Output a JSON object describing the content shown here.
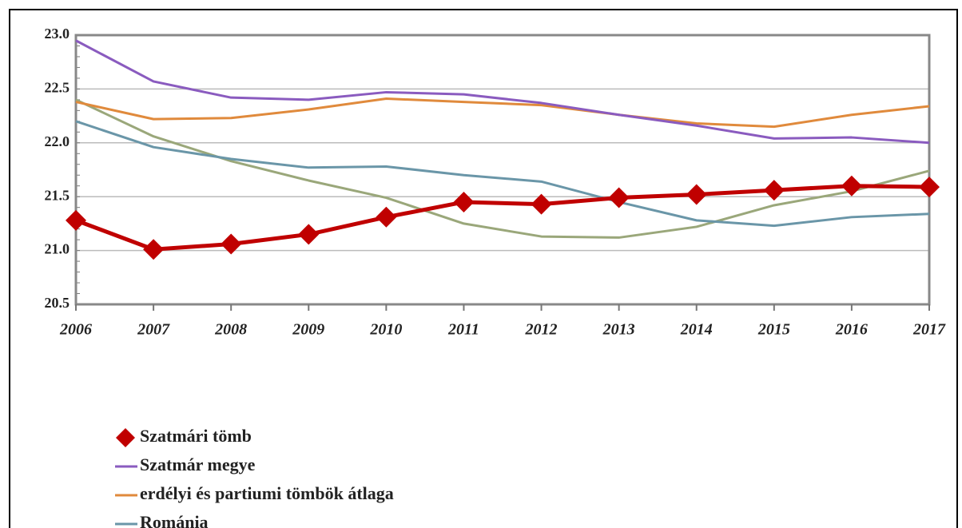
{
  "chart_data": {
    "type": "line",
    "categories": [
      "2006",
      "2007",
      "2008",
      "2009",
      "2010",
      "2011",
      "2012",
      "2013",
      "2014",
      "2015",
      "2016",
      "2017"
    ],
    "series": [
      {
        "name": "Szatmári tömb",
        "color": "#c00000",
        "marker": "diamond",
        "values": [
          21.28,
          21.01,
          21.06,
          21.15,
          21.31,
          21.45,
          21.43,
          21.49,
          21.52,
          21.56,
          21.6,
          21.59
        ]
      },
      {
        "name": "Szatmár megye",
        "color": "#8a5bbf",
        "values": [
          22.95,
          22.57,
          22.42,
          22.4,
          22.47,
          22.45,
          22.37,
          22.26,
          22.16,
          22.04,
          22.05,
          22.0
        ]
      },
      {
        "name": "erdélyi és partiumi tömbök átlaga",
        "color": "#e08a3c",
        "values": [
          22.38,
          22.22,
          22.23,
          22.31,
          22.41,
          22.38,
          22.35,
          22.26,
          22.18,
          22.15,
          22.26,
          22.34
        ]
      },
      {
        "name": "Románia",
        "color": "#6a96a8",
        "values": [
          22.2,
          21.96,
          21.85,
          21.77,
          21.78,
          21.7,
          21.64,
          21.45,
          21.28,
          21.23,
          21.31,
          21.34
        ]
      },
      {
        "color": "#9aa77a",
        "values": [
          22.4,
          22.06,
          21.83,
          21.65,
          21.49,
          21.25,
          21.13,
          21.12,
          21.22,
          21.42,
          21.55,
          21.74
        ]
      }
    ],
    "ylim": [
      20.5,
      23.0
    ],
    "yticks": [
      20.5,
      {
        "value": 21,
        "label": "21.0"
      },
      21.5,
      {
        "value": 22,
        "label": "22.0"
      },
      22.5,
      {
        "value": 23,
        "label": "23.0"
      }
    ],
    "grid": true
  }
}
